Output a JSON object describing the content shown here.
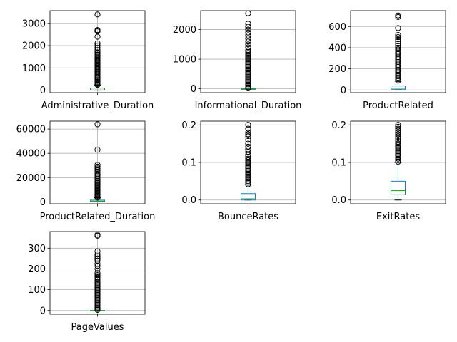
{
  "chart_data": [
    {
      "type": "boxplot",
      "xlabel": "Administrative_Duration",
      "ylim": [
        -110,
        3570
      ],
      "yticks": [
        0,
        1000,
        2000,
        3000
      ],
      "yticklabels": [
        "0",
        "1000",
        "2000",
        "3000"
      ],
      "grid": true,
      "box": {
        "q1": 0,
        "median": 7,
        "q3": 93,
        "whisker_low": 0,
        "whisker_high": 232
      },
      "outliers": [
        240,
        280,
        330,
        380,
        430,
        480,
        530,
        580,
        640,
        700,
        760,
        820,
        880,
        940,
        1000,
        1060,
        1120,
        1180,
        1240,
        1300,
        1360,
        1420,
        1480,
        1540,
        1600,
        1660,
        1700,
        1800,
        1900,
        2000,
        2100,
        2400,
        2640,
        2700,
        3400
      ]
    },
    {
      "type": "boxplot",
      "xlabel": "Informational_Duration",
      "ylim": [
        -130,
        2640
      ],
      "yticks": [
        0,
        1000,
        2000
      ],
      "yticklabels": [
        "0",
        "1000",
        "2000"
      ],
      "grid": true,
      "box": {
        "q1": 0,
        "median": 0,
        "q3": 0,
        "whisker_low": 0,
        "whisker_high": 0
      },
      "outliers": [
        15,
        50,
        100,
        150,
        200,
        250,
        300,
        350,
        400,
        450,
        500,
        550,
        600,
        650,
        700,
        750,
        800,
        850,
        900,
        950,
        1000,
        1050,
        1100,
        1150,
        1200,
        1250,
        1300,
        1400,
        1500,
        1600,
        1700,
        1800,
        1900,
        2000,
        2100,
        2200,
        2550
      ]
    },
    {
      "type": "boxplot",
      "xlabel": "ProductRelated",
      "ylim": [
        -25,
        750
      ],
      "yticks": [
        0,
        200,
        400,
        600
      ],
      "yticklabels": [
        "0",
        "200",
        "400",
        "600"
      ],
      "grid": true,
      "box": {
        "q1": 7,
        "median": 18,
        "q3": 38,
        "whisker_low": 0,
        "whisker_high": 84
      },
      "outliers": [
        88,
        100,
        115,
        130,
        145,
        160,
        175,
        190,
        205,
        220,
        235,
        250,
        265,
        280,
        295,
        310,
        325,
        340,
        355,
        370,
        385,
        400,
        420,
        440,
        460,
        480,
        500,
        520,
        585,
        690,
        705
      ]
    },
    {
      "type": "boxplot",
      "xlabel": "ProductRelated_Duration",
      "ylim": [
        -1500,
        66500
      ],
      "yticks": [
        0,
        20000,
        40000,
        60000
      ],
      "yticklabels": [
        "0",
        "20000",
        "40000",
        "60000"
      ],
      "grid": true,
      "box": {
        "q1": 184,
        "median": 598,
        "q3": 1464,
        "whisker_low": 0,
        "whisker_high": 3380
      },
      "outliers": [
        3500,
        4200,
        5000,
        5800,
        6600,
        7400,
        8200,
        9000,
        9800,
        10600,
        11400,
        12200,
        13000,
        13800,
        14600,
        15500,
        17000,
        18500,
        20000,
        21500,
        23000,
        24500,
        26000,
        27500,
        29000,
        30500,
        43000,
        63900
      ]
    },
    {
      "type": "boxplot",
      "xlabel": "BounceRates",
      "ylim": [
        -0.01,
        0.21
      ],
      "yticks": [
        0,
        0.1,
        0.2
      ],
      "yticklabels": [
        "0.0",
        "0.1",
        "0.2"
      ],
      "grid": true,
      "box": {
        "q1": 0,
        "median": 0.003,
        "q3": 0.017,
        "whisker_low": 0,
        "whisker_high": 0.04
      },
      "outliers": [
        0.042,
        0.046,
        0.05,
        0.054,
        0.058,
        0.062,
        0.066,
        0.07,
        0.074,
        0.078,
        0.082,
        0.086,
        0.09,
        0.094,
        0.098,
        0.102,
        0.106,
        0.11,
        0.115,
        0.12,
        0.128,
        0.135,
        0.142,
        0.15,
        0.16,
        0.17,
        0.175,
        0.18,
        0.19,
        0.2
      ]
    },
    {
      "type": "boxplot",
      "xlabel": "ExitRates",
      "ylim": [
        -0.01,
        0.21
      ],
      "yticks": [
        0,
        0.1,
        0.2
      ],
      "yticklabels": [
        "0.0",
        "0.1",
        "0.2"
      ],
      "grid": true,
      "box": {
        "q1": 0.014,
        "median": 0.025,
        "q3": 0.05,
        "whisker_low": 0,
        "whisker_high": 0.1
      },
      "outliers": [
        0.102,
        0.106,
        0.11,
        0.114,
        0.118,
        0.122,
        0.126,
        0.13,
        0.134,
        0.138,
        0.142,
        0.146,
        0.15,
        0.155,
        0.16,
        0.165,
        0.17,
        0.175,
        0.18,
        0.185,
        0.19,
        0.195,
        0.2
      ]
    },
    {
      "type": "boxplot",
      "xlabel": "PageValues",
      "ylim": [
        -18,
        380
      ],
      "yticks": [
        0,
        100,
        200,
        300
      ],
      "yticklabels": [
        "0",
        "100",
        "200",
        "300"
      ],
      "grid": true,
      "box": {
        "q1": 0,
        "median": 0,
        "q3": 0,
        "whisker_low": 0,
        "whisker_high": 0
      },
      "outliers": [
        3,
        8,
        14,
        20,
        26,
        32,
        38,
        44,
        50,
        56,
        62,
        68,
        74,
        80,
        86,
        92,
        98,
        104,
        110,
        116,
        122,
        128,
        134,
        140,
        150,
        160,
        170,
        180,
        200,
        215,
        225,
        240,
        250,
        260,
        270,
        285,
        360,
        365
      ]
    }
  ],
  "colors": {
    "box": "#1f77b4",
    "median": "#2ca02c",
    "outlier_edge": "#000000",
    "grid": "#b0b0b0",
    "axis": "#000000"
  }
}
